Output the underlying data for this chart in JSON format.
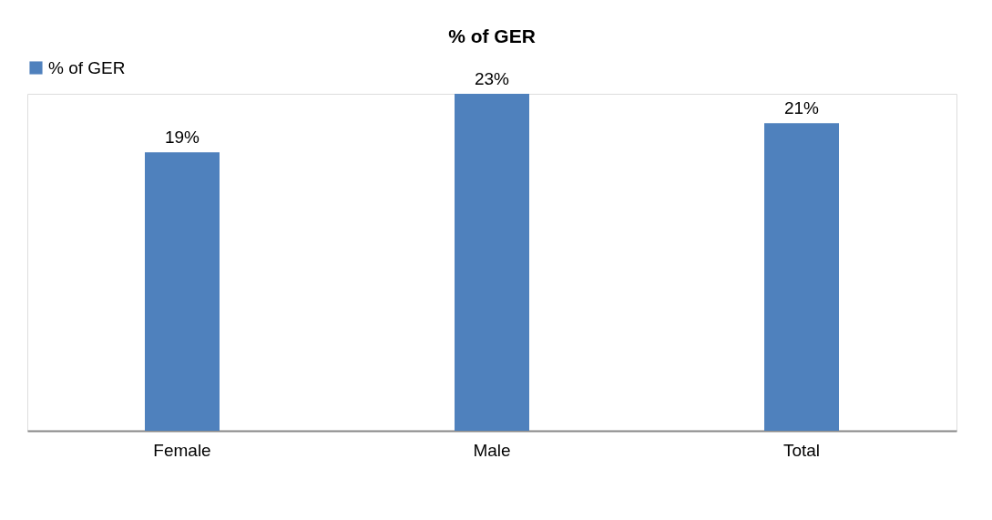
{
  "chart_data": {
    "type": "bar",
    "title": "% of GER",
    "categories": [
      "Female",
      "Male",
      "Total"
    ],
    "series": [
      {
        "name": "% of GER",
        "color": "#4f81bd",
        "values": [
          19,
          23,
          21
        ],
        "value_labels": [
          "19%",
          "23%",
          "21%"
        ]
      }
    ],
    "legend": "top",
    "grid": false,
    "tick_labels": "x"
  }
}
